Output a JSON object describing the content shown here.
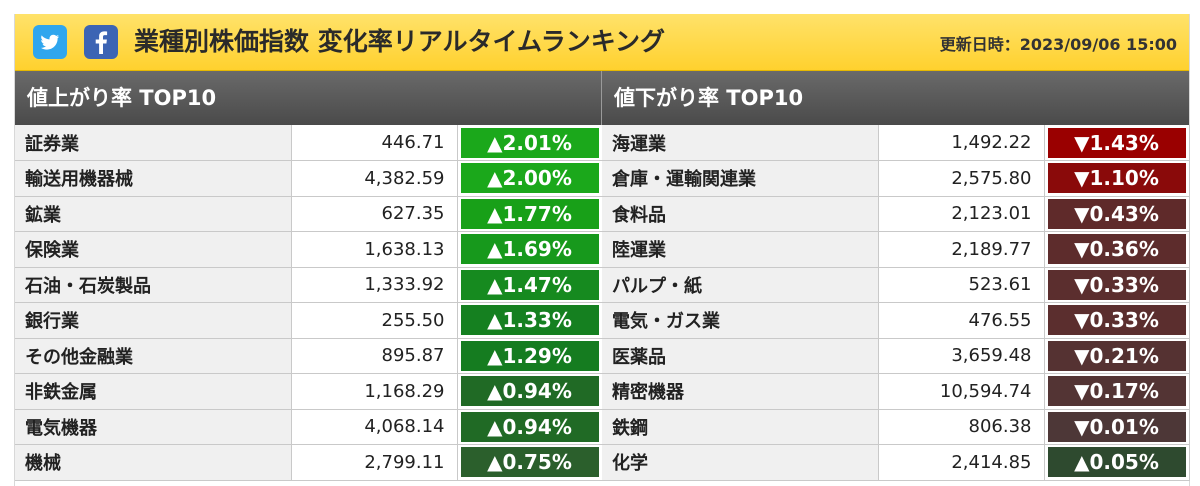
{
  "header": {
    "title": "業種別株価指数 変化率リアルタイムランキング",
    "updated": "更新日時：2023/09/06 15:00"
  },
  "social": [
    {
      "name": "twitter-icon",
      "color": "#2fa6ee"
    },
    {
      "name": "facebook-icon",
      "color": "#3c64b4"
    }
  ],
  "gainers": {
    "title": "値上がり率 TOP10",
    "rows": [
      {
        "name": "証券業",
        "value": "446.71",
        "change": "▲2.01%",
        "color": "#1ba81b"
      },
      {
        "name": "輸送用機器械",
        "value": "4,382.59",
        "change": "▲2.00%",
        "color": "#1ba81b"
      },
      {
        "name": "鉱業",
        "value": "627.35",
        "change": "▲1.77%",
        "color": "#18a018"
      },
      {
        "name": "保険業",
        "value": "1,638.13",
        "change": "▲1.69%",
        "color": "#17991c"
      },
      {
        "name": "石油・石炭製品",
        "value": "1,333.92",
        "change": "▲1.47%",
        "color": "#168a1f"
      },
      {
        "name": "銀行業",
        "value": "255.50",
        "change": "▲1.33%",
        "color": "#158020"
      },
      {
        "name": "その他金融業",
        "value": "895.87",
        "change": "▲1.29%",
        "color": "#157c20"
      },
      {
        "name": "非鉄金属",
        "value": "1,168.29",
        "change": "▲0.94%",
        "color": "#206a25"
      },
      {
        "name": "電気機器",
        "value": "4,068.14",
        "change": "▲0.94%",
        "color": "#206a25"
      },
      {
        "name": "機械",
        "value": "2,799.11",
        "change": "▲0.75%",
        "color": "#2b5f2c"
      }
    ]
  },
  "losers": {
    "title": "値下がり率 TOP10",
    "rows": [
      {
        "name": "海運業",
        "value": "1,492.22",
        "change": "▼1.43%",
        "color": "#9a0000"
      },
      {
        "name": "倉庫・運輸関連業",
        "value": "2,575.80",
        "change": "▼1.10%",
        "color": "#8a0a0a"
      },
      {
        "name": "食料品",
        "value": "2,123.01",
        "change": "▼0.43%",
        "color": "#5f2a2a"
      },
      {
        "name": "陸運業",
        "value": "2,189.77",
        "change": "▼0.36%",
        "color": "#5d2c2c"
      },
      {
        "name": "パルプ・紙",
        "value": "523.61",
        "change": "▼0.33%",
        "color": "#5b2e2e"
      },
      {
        "name": "電気・ガス業",
        "value": "476.55",
        "change": "▼0.33%",
        "color": "#5b2e2e"
      },
      {
        "name": "医薬品",
        "value": "3,659.48",
        "change": "▼0.21%",
        "color": "#553232"
      },
      {
        "name": "精密機器",
        "value": "10,594.74",
        "change": "▼0.17%",
        "color": "#533434"
      },
      {
        "name": "鉄鋼",
        "value": "806.38",
        "change": "▼0.01%",
        "color": "#4d3737"
      },
      {
        "name": "化学",
        "value": "2,414.85",
        "change": "▲0.05%",
        "color": "#2e4a2f"
      }
    ]
  }
}
